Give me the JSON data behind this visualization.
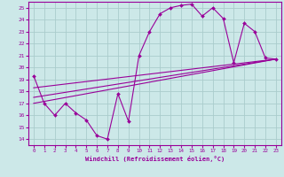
{
  "title": "",
  "xlabel": "Windchill (Refroidissement éolien,°C)",
  "bg_color": "#cce8e8",
  "line_color": "#990099",
  "grid_color": "#aacccc",
  "xlim": [
    -0.5,
    23.5
  ],
  "ylim": [
    13.5,
    25.5
  ],
  "x_ticks": [
    0,
    1,
    2,
    3,
    4,
    5,
    6,
    7,
    8,
    9,
    10,
    11,
    12,
    13,
    14,
    15,
    16,
    17,
    18,
    19,
    20,
    21,
    22,
    23
  ],
  "y_ticks": [
    14,
    15,
    16,
    17,
    18,
    19,
    20,
    21,
    22,
    23,
    24,
    25
  ],
  "series1_x": [
    0,
    1,
    2,
    3,
    4,
    5,
    6,
    7,
    8,
    9,
    10,
    11,
    12,
    13,
    14,
    15,
    16,
    17,
    18,
    19,
    20,
    21,
    22,
    23
  ],
  "series1_y": [
    19.3,
    17.0,
    16.0,
    17.0,
    16.2,
    15.6,
    14.3,
    14.0,
    17.8,
    15.5,
    21.0,
    23.0,
    24.5,
    25.0,
    25.2,
    25.3,
    24.3,
    25.0,
    24.1,
    20.4,
    23.7,
    23.0,
    20.8,
    20.7
  ],
  "line2_x": [
    0,
    23
  ],
  "line2_y": [
    17.5,
    20.7
  ],
  "line3_x": [
    0,
    23
  ],
  "line3_y": [
    18.3,
    20.7
  ],
  "line4_x": [
    0,
    23
  ],
  "line4_y": [
    17.0,
    20.7
  ]
}
